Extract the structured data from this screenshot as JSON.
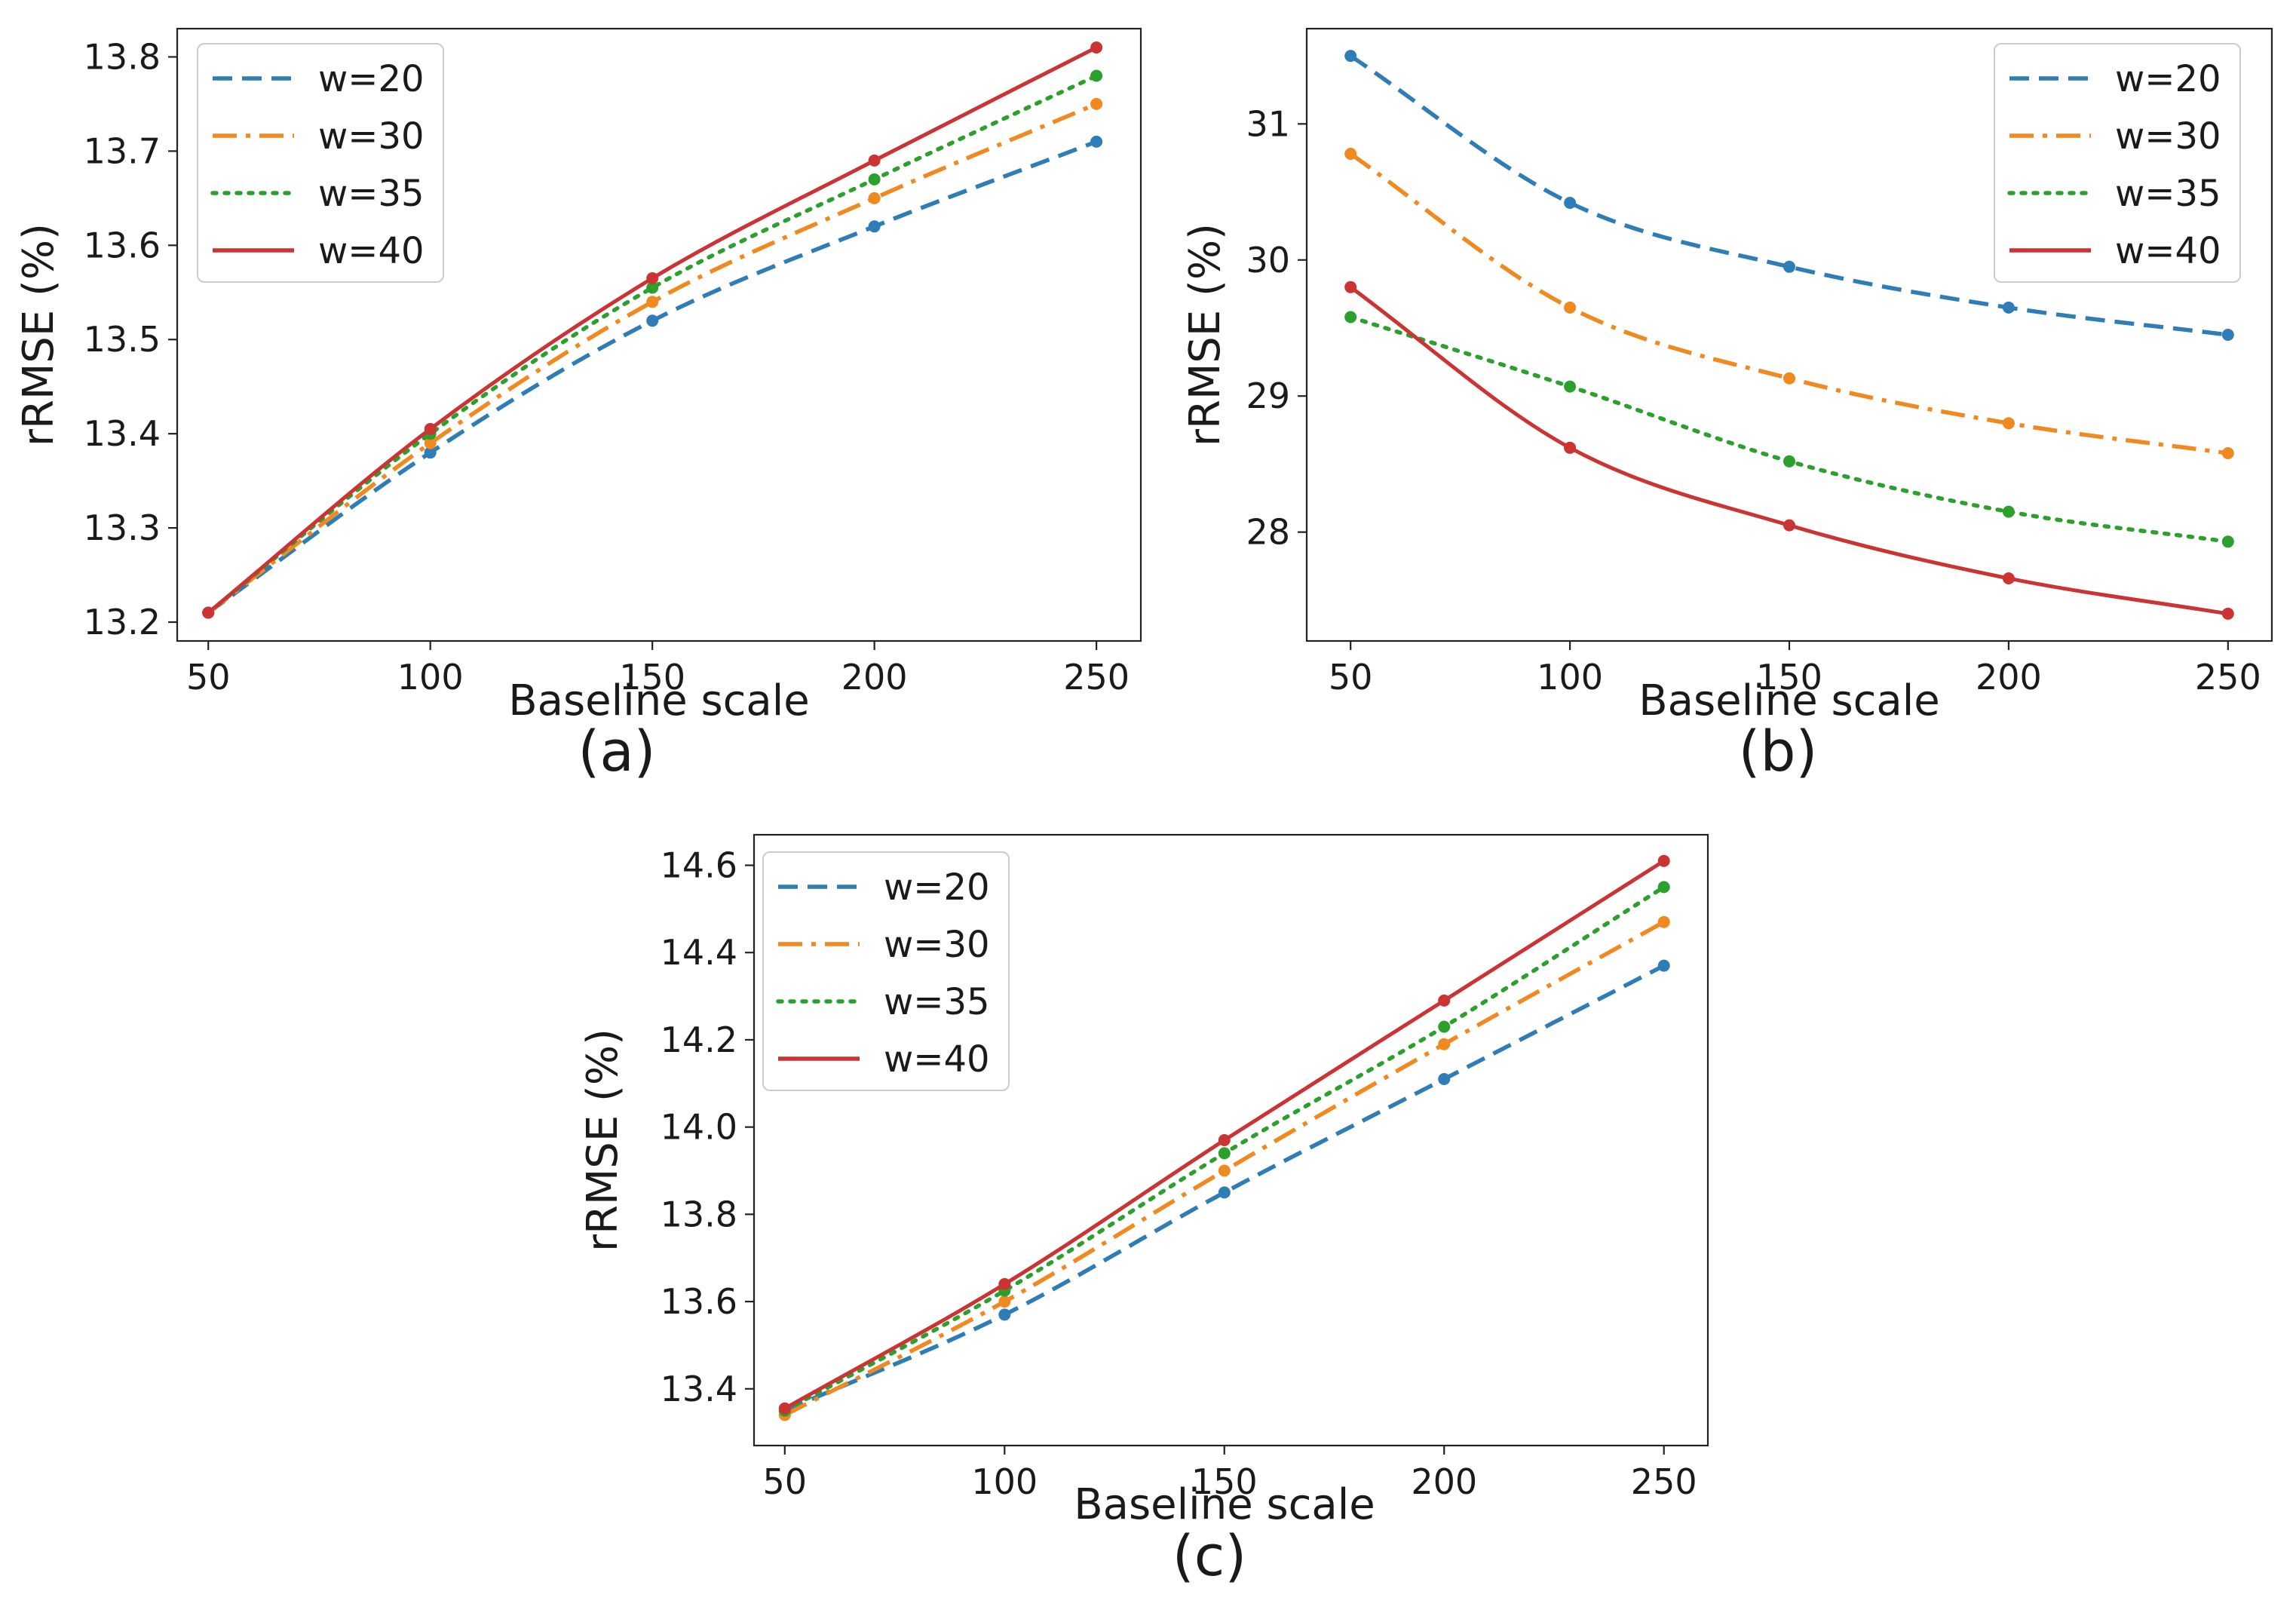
{
  "colors": {
    "w20": "#2f7db6",
    "w30": "#f0891f",
    "w35": "#2ca02c",
    "w40": "#cc3333"
  },
  "chart_data": [
    {
      "type": "line",
      "panel_label": "(a)",
      "xlabel": "Baseline scale",
      "ylabel": "rRMSE (%)",
      "x": [
        50,
        100,
        150,
        200,
        250
      ],
      "xticks": [
        "50",
        "100",
        "150",
        "200",
        "250"
      ],
      "xlim": [
        43,
        260
      ],
      "yticks": [
        "13.2",
        "13.3",
        "13.4",
        "13.5",
        "13.6",
        "13.7",
        "13.8"
      ],
      "ylim": [
        13.18,
        13.83
      ],
      "legend_position": "top-left",
      "series": [
        {
          "name": "w=20",
          "style": "dashed",
          "values": [
            13.21,
            13.38,
            13.52,
            13.62,
            13.71
          ]
        },
        {
          "name": "w=30",
          "style": "dashdot",
          "values": [
            13.21,
            13.39,
            13.54,
            13.65,
            13.75
          ]
        },
        {
          "name": "w=35",
          "style": "dotted",
          "values": [
            13.21,
            13.4,
            13.555,
            13.67,
            13.78
          ]
        },
        {
          "name": "w=40",
          "style": "solid",
          "values": [
            13.21,
            13.405,
            13.565,
            13.69,
            13.81
          ]
        }
      ]
    },
    {
      "type": "line",
      "panel_label": "(b)",
      "xlabel": "Baseline scale",
      "ylabel": "rRMSE (%)",
      "x": [
        50,
        100,
        150,
        200,
        250
      ],
      "xticks": [
        "50",
        "100",
        "150",
        "200",
        "250"
      ],
      "xlim": [
        40,
        260
      ],
      "yticks": [
        "28",
        "29",
        "30",
        "31"
      ],
      "ylim": [
        27.2,
        31.7
      ],
      "legend_position": "top-right",
      "series": [
        {
          "name": "w=20",
          "style": "dashed",
          "values": [
            31.5,
            30.42,
            29.95,
            29.65,
            29.45
          ]
        },
        {
          "name": "w=30",
          "style": "dashdot",
          "values": [
            30.78,
            29.65,
            29.13,
            28.8,
            28.58
          ]
        },
        {
          "name": "w=35",
          "style": "dotted",
          "values": [
            29.58,
            29.07,
            28.52,
            28.15,
            27.93
          ]
        },
        {
          "name": "w=40",
          "style": "solid",
          "values": [
            29.8,
            28.62,
            28.05,
            27.66,
            27.4
          ]
        }
      ]
    },
    {
      "type": "line",
      "panel_label": "(c)",
      "xlabel": "Baseline scale",
      "ylabel": "rRMSE (%)",
      "x": [
        50,
        100,
        150,
        200,
        250
      ],
      "xticks": [
        "50",
        "100",
        "150",
        "200",
        "250"
      ],
      "xlim": [
        43,
        260
      ],
      "yticks": [
        "13.4",
        "13.6",
        "13.8",
        "14.0",
        "14.2",
        "14.4",
        "14.6"
      ],
      "ylim": [
        13.27,
        14.67
      ],
      "legend_position": "top-left",
      "series": [
        {
          "name": "w=20",
          "style": "dashed",
          "values": [
            13.35,
            13.57,
            13.85,
            14.11,
            14.37
          ]
        },
        {
          "name": "w=30",
          "style": "dashdot",
          "values": [
            13.34,
            13.6,
            13.9,
            14.19,
            14.47
          ]
        },
        {
          "name": "w=35",
          "style": "dotted",
          "values": [
            13.35,
            13.625,
            13.94,
            14.23,
            14.55
          ]
        },
        {
          "name": "w=40",
          "style": "solid",
          "values": [
            13.355,
            13.64,
            13.97,
            14.29,
            14.61
          ]
        }
      ]
    }
  ]
}
